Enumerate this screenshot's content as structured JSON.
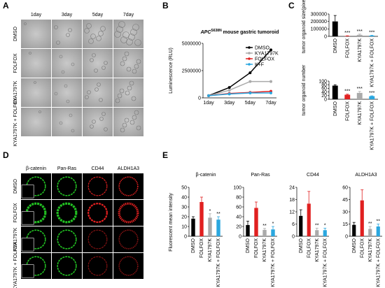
{
  "panel_labels": [
    "A",
    "B",
    "C",
    "D",
    "E"
  ],
  "panel_a": {
    "columns": [
      "1day",
      "3day",
      "5day",
      "7day"
    ],
    "rows": [
      "DMSO",
      "FOLFOX",
      "KYA1797K",
      "KYA1797K + FOLFOX"
    ]
  },
  "panel_d": {
    "columns": [
      "β-catenin",
      "Pan-Ras",
      "CD44",
      "ALDH1A3"
    ],
    "rows": [
      "DMSO",
      "FOLFOX",
      "KYA1797K",
      "KYA1797K + FOLFOX"
    ]
  },
  "panel_e": {
    "ylabel": "Fluorescent mean intensity"
  },
  "chart_data": [
    {
      "type": "line",
      "title": [
        "APC",
        "S638N",
        " mouse gastric tumoroid"
      ],
      "categories": [
        "1day",
        "3day",
        "5day",
        "7day"
      ],
      "ylabel": "Luminescence (RLU)",
      "ylim": [
        0,
        5000000
      ],
      "yticks": [
        0,
        2500000,
        5000000
      ],
      "series": [
        {
          "name": "DMSO",
          "color": "#000000",
          "values": [
            200000,
            950000,
            2300000,
            4400000
          ]
        },
        {
          "name": "KYA1797K",
          "color": "#aaaaaa",
          "values": [
            200000,
            700000,
            1500000,
            1500000
          ]
        },
        {
          "name": "FOLFOX",
          "color": "#e02020",
          "values": [
            200000,
            400000,
            500000,
            600000
          ]
        },
        {
          "name": "K+F",
          "color": "#2aa7df",
          "values": [
            200000,
            350000,
            450000,
            450000
          ]
        }
      ]
    },
    {
      "type": "bar",
      "ylabel": "tumor organoid size(pixel)",
      "categories": [
        "DMSO",
        "FOLFOX",
        "KYA1797K",
        "KYA1797K + FOLFOX"
      ],
      "values": [
        200000,
        5000,
        20000,
        10000
      ],
      "errors": [
        80000,
        3000,
        10000,
        5000
      ],
      "annotations": [
        null,
        "***",
        "***",
        "***"
      ],
      "colors": [
        "#000000",
        "#e02020",
        "#aaaaaa",
        "#2aa7df"
      ],
      "ylim": [
        0,
        300000
      ],
      "yticks": [
        0,
        100000,
        200000,
        300000
      ]
    },
    {
      "type": "bar",
      "ylabel": "tumor organoid number",
      "categories": [
        "DMSO",
        "FOLFOX",
        "KYA1797K",
        "KYA1797K + FOLFOX"
      ],
      "values": [
        75,
        25,
        35,
        17
      ],
      "errors": [
        5,
        3,
        8,
        2
      ],
      "annotations": [
        null,
        "***",
        "***",
        "***"
      ],
      "colors": [
        "#000000",
        "#e02020",
        "#aaaaaa",
        "#2aa7df"
      ],
      "ylim": [
        0,
        100
      ],
      "yticks": [
        0,
        20,
        40,
        60,
        80,
        100
      ]
    },
    {
      "type": "bar",
      "title": "β-catenin",
      "categories": [
        "DMSO",
        "FOLFOX",
        "KYA1797K",
        "KYA1797K + FOLFOX"
      ],
      "values": [
        18,
        35,
        19,
        17
      ],
      "errors": [
        2,
        5,
        4,
        3
      ],
      "annotations": [
        null,
        null,
        "*",
        "**"
      ],
      "colors": [
        "#000000",
        "#e02020",
        "#aaaaaa",
        "#2aa7df"
      ],
      "ylim": [
        0,
        50
      ],
      "yticks": [
        0,
        10,
        20,
        30,
        40,
        50
      ]
    },
    {
      "type": "bar",
      "title": "Pan-Ras",
      "categories": [
        "DMSO",
        "FOLFOX",
        "KYA1797K",
        "KYA1797K + FOLFOX"
      ],
      "values": [
        23,
        58,
        13,
        14
      ],
      "errors": [
        8,
        12,
        3,
        6
      ],
      "annotations": [
        null,
        null,
        "**",
        "*"
      ],
      "colors": [
        "#000000",
        "#e02020",
        "#aaaaaa",
        "#2aa7df"
      ],
      "ylim": [
        0,
        100
      ],
      "yticks": [
        0,
        20,
        40,
        60,
        80,
        100
      ]
    },
    {
      "type": "bar",
      "title": "CD44",
      "categories": [
        "DMSO",
        "FOLFOX",
        "KYA1797K",
        "KYA1797K + FOLFOX"
      ],
      "values": [
        10,
        16,
        3,
        3
      ],
      "errors": [
        3,
        6,
        1,
        1
      ],
      "annotations": [
        null,
        null,
        "**",
        "*"
      ],
      "colors": [
        "#000000",
        "#e02020",
        "#aaaaaa",
        "#2aa7df"
      ],
      "ylim": [
        0,
        24
      ],
      "yticks": [
        0,
        6,
        12,
        18,
        24
      ]
    },
    {
      "type": "bar",
      "title": "ALDH1A3",
      "categories": [
        "DMSO",
        "FOLFOX",
        "KYA1797K",
        "KYA1797K + FOLFOX"
      ],
      "values": [
        14,
        44,
        9,
        12
      ],
      "errors": [
        3,
        13,
        3,
        3
      ],
      "annotations": [
        null,
        null,
        "**",
        "**"
      ],
      "colors": [
        "#000000",
        "#e02020",
        "#aaaaaa",
        "#2aa7df"
      ],
      "ylim": [
        0,
        60
      ],
      "yticks": [
        0,
        15,
        30,
        45,
        60
      ]
    }
  ]
}
